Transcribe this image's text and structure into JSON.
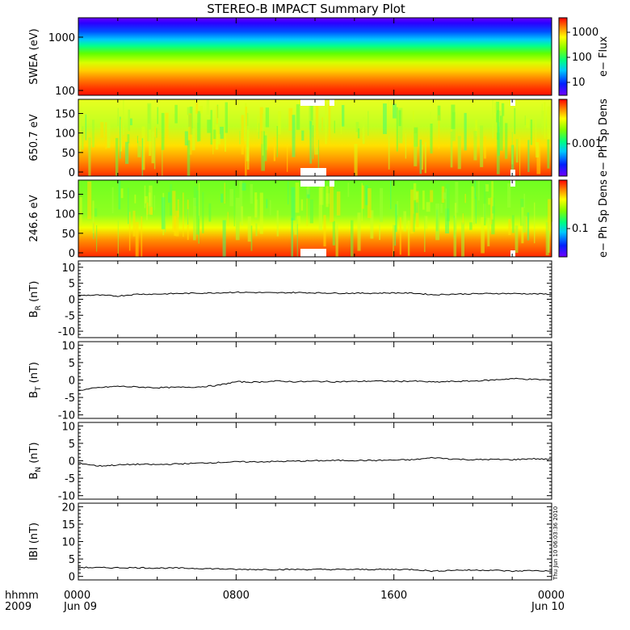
{
  "title": "STEREO-B IMPACT Summary Plot",
  "time_axis": {
    "row1_label": "hhmm",
    "row2_label": "2009",
    "ticks": [
      {
        "hhmm": "0000",
        "date": "Jun 09"
      },
      {
        "hhmm": "0800",
        "date": ""
      },
      {
        "hhmm": "1600",
        "date": ""
      },
      {
        "hhmm": "0000",
        "date": "Jun 10"
      }
    ]
  },
  "timestamp": "Thu Jun 10 06:03:36 2010",
  "chart_data": [
    {
      "type": "heatmap",
      "ylabel": "SWEA (eV)",
      "ylog": true,
      "ylim": [
        95,
        2000
      ],
      "yticks": [
        "1000",
        "100"
      ],
      "colorbar": {
        "label": "e− Flux",
        "ticks": [
          "1000",
          "100",
          "10"
        ],
        "log": true,
        "range": [
          3,
          3000
        ]
      },
      "description_colors": [
        "#0000ff",
        "#00c0ff",
        "#00ff80",
        "#ffff00",
        "#ff0000"
      ]
    },
    {
      "type": "heatmap",
      "ylabel": "650.7 eV",
      "ylim": [
        0,
        180
      ],
      "yticks": [
        "150",
        "100",
        "50",
        "0"
      ],
      "colorbar": {
        "label": "e− Ph Sp Dens",
        "ticks": [
          "0.001"
        ],
        "log": true
      }
    },
    {
      "type": "heatmap",
      "ylabel": "246.6 eV",
      "ylim": [
        0,
        180
      ],
      "yticks": [
        "150",
        "100",
        "50",
        "0"
      ],
      "colorbar": {
        "label": "e− Ph Sp Dens",
        "ticks": [
          "0.1"
        ],
        "log": true
      }
    },
    {
      "type": "line",
      "ylabel": "B",
      "ysub": "R",
      "yunit": "(nT)",
      "ylim": [
        -12,
        12
      ],
      "yticks": [
        10,
        5,
        0,
        -5,
        -10
      ],
      "x_hours": [
        0,
        1,
        2,
        3,
        4,
        5,
        6,
        7,
        8,
        9,
        10,
        11,
        12,
        13,
        14,
        15,
        16,
        17,
        18,
        19,
        20,
        21,
        22,
        23,
        24
      ],
      "values": [
        1.2,
        1.3,
        1.0,
        1.6,
        1.6,
        1.8,
        1.9,
        2.0,
        2.2,
        2.1,
        2.0,
        2.1,
        2.0,
        1.9,
        1.9,
        1.9,
        2.0,
        1.9,
        1.4,
        1.6,
        1.7,
        1.8,
        1.8,
        1.7,
        1.6
      ]
    },
    {
      "type": "line",
      "ylabel": "B",
      "ysub": "T",
      "yunit": "(nT)",
      "ylim": [
        -11,
        11
      ],
      "yticks": [
        10,
        5,
        0,
        -5,
        -10
      ],
      "x_hours": [
        0,
        1,
        2,
        3,
        4,
        5,
        6,
        7,
        8,
        9,
        10,
        11,
        12,
        13,
        14,
        15,
        16,
        17,
        18,
        19,
        20,
        21,
        22,
        23,
        24
      ],
      "values": [
        -3.0,
        -2.2,
        -1.8,
        -2.0,
        -2.2,
        -2.1,
        -2.0,
        -1.6,
        -0.5,
        -0.6,
        -0.3,
        -0.5,
        -0.4,
        -0.5,
        -0.4,
        -0.3,
        -0.4,
        -0.3,
        -0.6,
        -0.4,
        -0.3,
        0.0,
        0.4,
        0.2,
        0.0
      ]
    },
    {
      "type": "line",
      "ylabel": "B",
      "ysub": "N",
      "yunit": "(nT)",
      "ylim": [
        -11,
        11
      ],
      "yticks": [
        10,
        5,
        0,
        -5,
        -10
      ],
      "x_hours": [
        0,
        1,
        2,
        3,
        4,
        5,
        6,
        7,
        8,
        9,
        10,
        11,
        12,
        13,
        14,
        15,
        16,
        17,
        18,
        19,
        20,
        21,
        22,
        23,
        24
      ],
      "values": [
        -0.6,
        -1.5,
        -1.2,
        -1.0,
        -1.1,
        -0.9,
        -0.7,
        -0.5,
        -0.3,
        -0.3,
        -0.2,
        -0.1,
        0.0,
        0.1,
        0.1,
        0.1,
        0.2,
        0.3,
        0.9,
        0.5,
        0.3,
        0.4,
        0.3,
        0.6,
        0.4
      ]
    },
    {
      "type": "line",
      "ylabel": "IBI",
      "ysub": "",
      "yunit": "(nT)",
      "ylim": [
        -1,
        21
      ],
      "yticks": [
        20,
        15,
        10,
        5,
        0
      ],
      "x_hours": [
        0,
        1,
        2,
        3,
        4,
        5,
        6,
        7,
        8,
        9,
        10,
        11,
        12,
        13,
        14,
        15,
        16,
        17,
        18,
        19,
        20,
        21,
        22,
        23,
        24
      ],
      "values": [
        2.6,
        2.5,
        2.5,
        2.5,
        2.4,
        2.4,
        2.3,
        2.2,
        2.0,
        2.0,
        2.0,
        2.0,
        2.0,
        2.0,
        2.0,
        2.0,
        2.0,
        2.0,
        1.5,
        1.8,
        1.8,
        1.8,
        1.5,
        1.7,
        1.5
      ]
    }
  ]
}
